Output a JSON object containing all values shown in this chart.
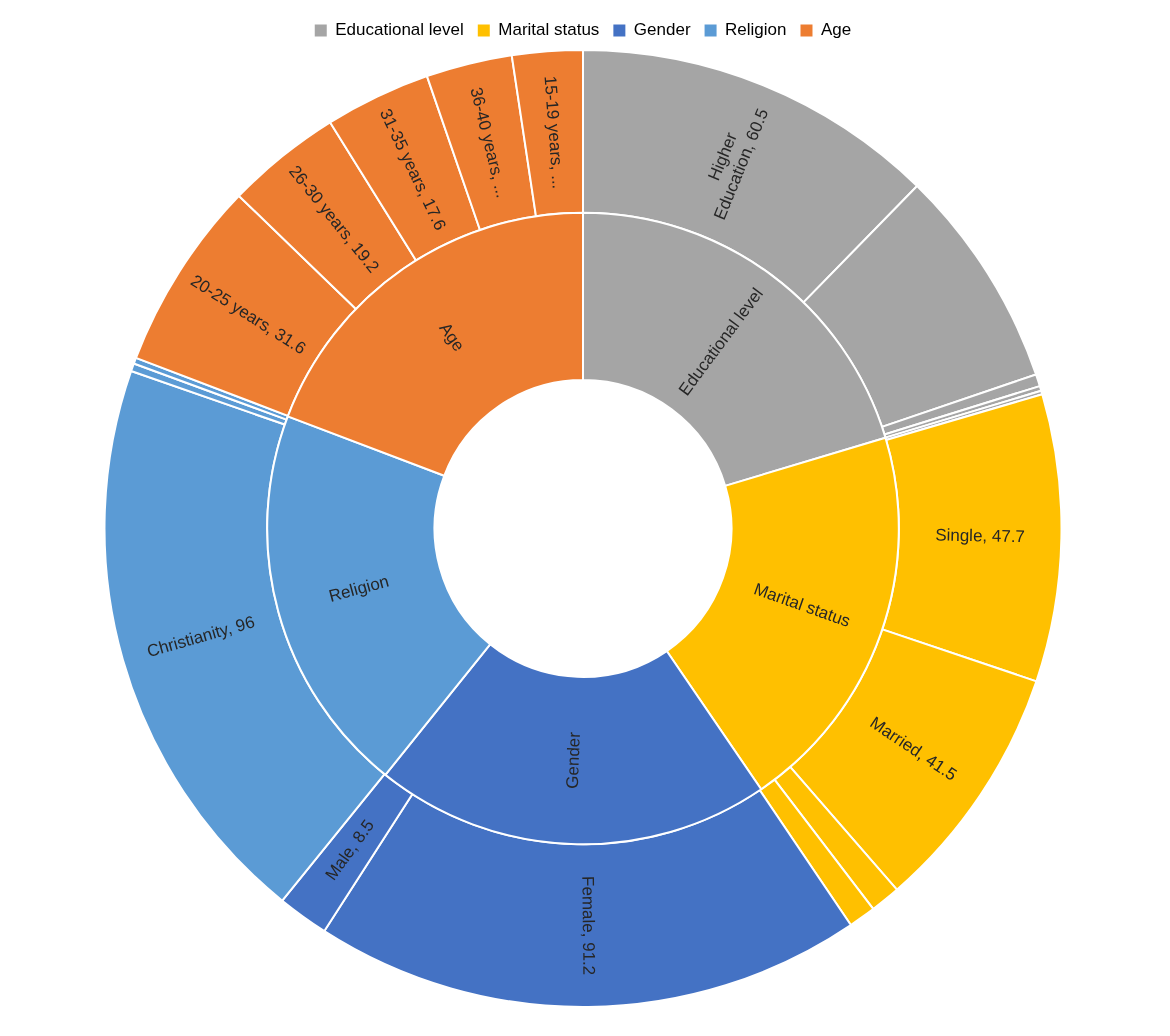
{
  "chart_data": [
    {
      "type": "donut",
      "categories": [
        "Higher Education",
        null,
        null,
        null,
        null,
        "Single",
        "Married",
        null,
        null,
        "Female",
        "Male",
        "Christianity",
        null,
        null,
        "20-25 years",
        "26-30 years",
        "31-35 years",
        "36-40 years",
        "15-19 years"
      ],
      "values": [
        60.5,
        36.8,
        2.0,
        0.8,
        0.6,
        47.7,
        41.5,
        5.0,
        4.5,
        91.2,
        8.5,
        96,
        1.3,
        1.0,
        31.6,
        19.2,
        17.6,
        14.3,
        11.7
      ],
      "colors": [
        "#a5a5a5",
        "#a5a5a5",
        "#a5a5a5",
        "#a5a5a5",
        "#a5a5a5",
        "#ffc000",
        "#ffc000",
        "#ffc000",
        "#ffc000",
        "#4472c4",
        "#4472c4",
        "#5b9bd5",
        "#5b9bd5",
        "#5b9bd5",
        "#ed7d31",
        "#ed7d31",
        "#ed7d31",
        "#ed7d31",
        "#ed7d31"
      ],
      "value_labels": [
        "60.5",
        null,
        null,
        null,
        null,
        "47.7",
        "41.5",
        null,
        null,
        "91.2",
        "8.5",
        "96",
        null,
        null,
        "31.6",
        "19.2",
        "17.6",
        "...",
        "..."
      ]
    },
    {
      "type": "donut",
      "legend": "top",
      "categories": [
        "Educational level",
        "Marital status",
        "Gender",
        "Religion",
        "Age"
      ],
      "values": [
        20.36,
        20.1,
        20.3,
        20.02,
        19.22
      ],
      "colors": [
        "#a5a5a5",
        "#ffc000",
        "#4472c4",
        "#5b9bd5",
        "#ed7d31"
      ]
    }
  ]
}
